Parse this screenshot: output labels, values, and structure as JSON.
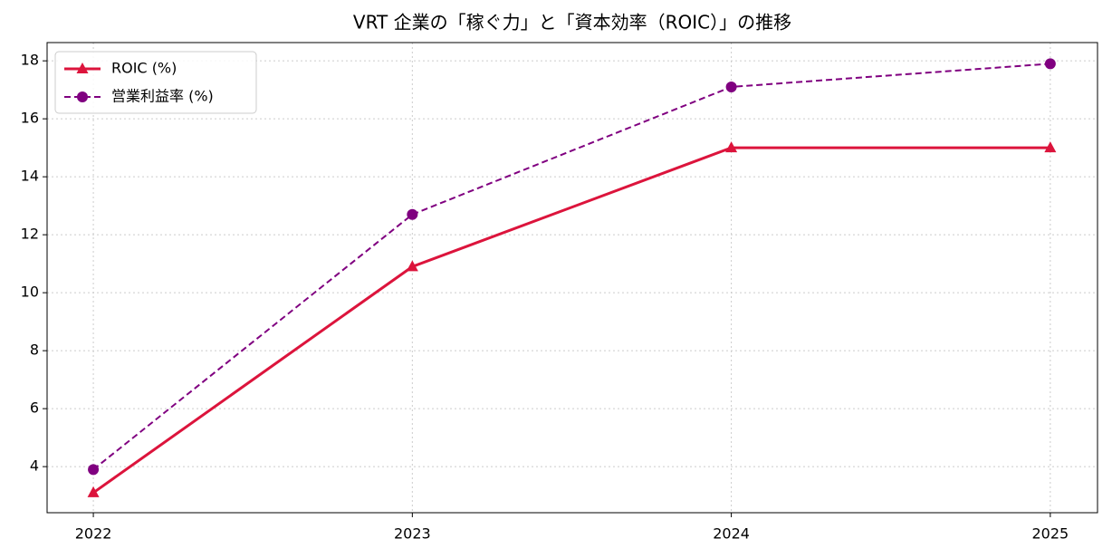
{
  "chart_data": {
    "type": "line",
    "title": "VRT 企業の「稼ぐ力」と「資本効率（ROIC）」の推移",
    "x": [
      2022,
      2023,
      2024,
      2025
    ],
    "series": [
      {
        "name": "ROIC (%)",
        "color": "#dc143c",
        "marker": "triangle",
        "linestyle": "solid",
        "values": [
          3.1,
          10.9,
          15.0,
          15.0
        ]
      },
      {
        "name": "営業利益率 (%)",
        "color": "#800080",
        "marker": "circle",
        "linestyle": "dashed",
        "values": [
          3.9,
          12.7,
          17.1,
          17.9
        ]
      }
    ],
    "xlim": [
      2021.855,
      2025.148
    ],
    "xticks": [
      2022,
      2023,
      2024,
      2025
    ],
    "ylim": [
      2.41,
      18.63
    ],
    "yticks": [
      4,
      6,
      8,
      10,
      12,
      14,
      16,
      18
    ],
    "grid": true,
    "legend": "upper-left"
  }
}
